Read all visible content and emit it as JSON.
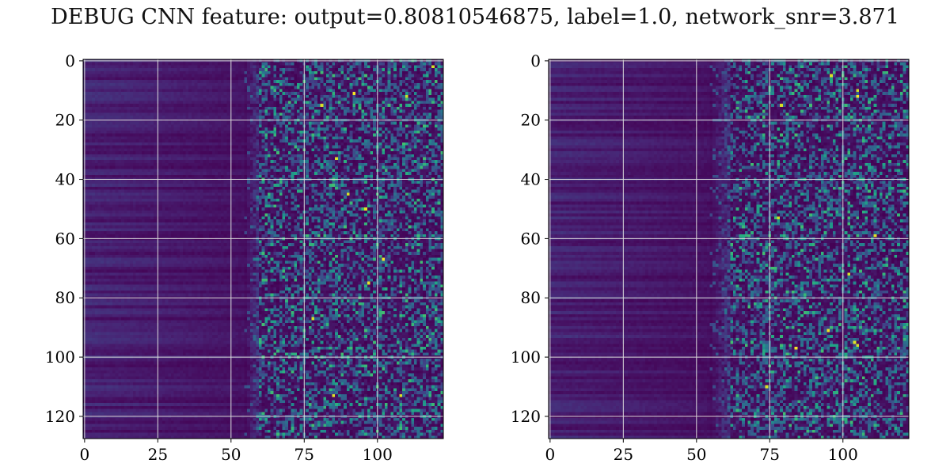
{
  "figure": {
    "suptitle": "DEBUG CNN feature: output=0.80810546875, label=1.0, network_snr=3.871"
  },
  "chart_data": [
    {
      "type": "heatmap",
      "colormap": "viridis",
      "rows": 128,
      "cols": 123,
      "xlim": [
        -0.5,
        122.5
      ],
      "ylim": [
        127.5,
        -0.5
      ],
      "xticks": [
        0,
        25,
        50,
        75,
        100
      ],
      "yticks": [
        0,
        20,
        40,
        60,
        80,
        100,
        120
      ],
      "grid": true,
      "grid_color": "#dcdcdc",
      "value_range": [
        0,
        1
      ],
      "description_pattern": {
        "quiet_region_cols": [
          0,
          55
        ],
        "noisy_region_cols": [
          60,
          122
        ],
        "bright_points": [
          [
            92,
            11
          ],
          [
            81,
            15
          ],
          [
            119,
            2
          ],
          [
            110,
            12
          ],
          [
            86,
            33
          ],
          [
            90,
            45
          ],
          [
            96,
            50
          ],
          [
            102,
            67
          ],
          [
            97,
            75
          ],
          [
            78,
            87
          ],
          [
            108,
            113
          ],
          [
            85,
            113
          ]
        ]
      }
    },
    {
      "type": "heatmap",
      "colormap": "viridis",
      "rows": 128,
      "cols": 123,
      "xlim": [
        -0.5,
        122.5
      ],
      "ylim": [
        127.5,
        -0.5
      ],
      "xticks": [
        0,
        25,
        50,
        75,
        100
      ],
      "yticks": [
        0,
        20,
        40,
        60,
        80,
        100,
        120
      ],
      "grid": true,
      "grid_color": "#dcdcdc",
      "value_range": [
        0,
        1
      ],
      "description_pattern": {
        "quiet_region_cols": [
          0,
          55
        ],
        "noisy_region_cols": [
          62,
          122
        ],
        "bright_points": [
          [
            79,
            15
          ],
          [
            105,
            10
          ],
          [
            105,
            12
          ],
          [
            78,
            53
          ],
          [
            111,
            59
          ],
          [
            102,
            72
          ],
          [
            95,
            91
          ],
          [
            105,
            96
          ],
          [
            84,
            97
          ],
          [
            104,
            95
          ],
          [
            96,
            5
          ],
          [
            74,
            110
          ]
        ]
      }
    }
  ]
}
